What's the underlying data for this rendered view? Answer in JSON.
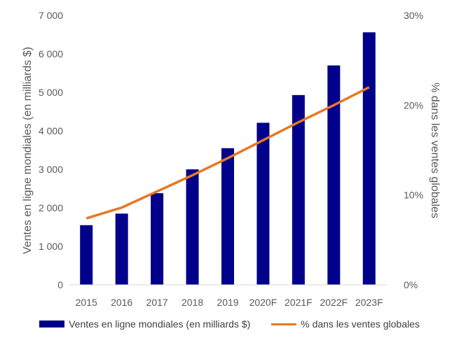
{
  "chart_data": {
    "type": "bar",
    "categories": [
      "2015",
      "2016",
      "2017",
      "2018",
      "2019",
      "2020F",
      "2021F",
      "2022F",
      "2023F"
    ],
    "series": [
      {
        "name": "Ventes en ligne mondiales (en milliards $)",
        "type": "bar",
        "axis": "left",
        "color": "#00008B",
        "values": [
          1550,
          1850,
          2380,
          3000,
          3550,
          4210,
          4930,
          5700,
          6560
        ]
      },
      {
        "name": "% dans les ventes globales",
        "type": "line",
        "axis": "right",
        "color": "#E87722",
        "values": [
          7.4,
          8.6,
          10.4,
          12.2,
          14.1,
          16.1,
          18.1,
          20.0,
          22.0
        ]
      }
    ],
    "ylabel": "Ventes en ligne mondiales (en milliards $)",
    "y2label": "% dans les ventes globales",
    "ylim": [
      0,
      7000
    ],
    "y2lim": [
      0,
      30
    ],
    "yticks": [
      "0",
      "1 000",
      "2 000",
      "3 000",
      "4 000",
      "5 000",
      "6 000",
      "7 000"
    ],
    "y2ticks": [
      "0%",
      "10%",
      "20%",
      "30%"
    ],
    "grid": false,
    "legend_position": "bottom"
  }
}
